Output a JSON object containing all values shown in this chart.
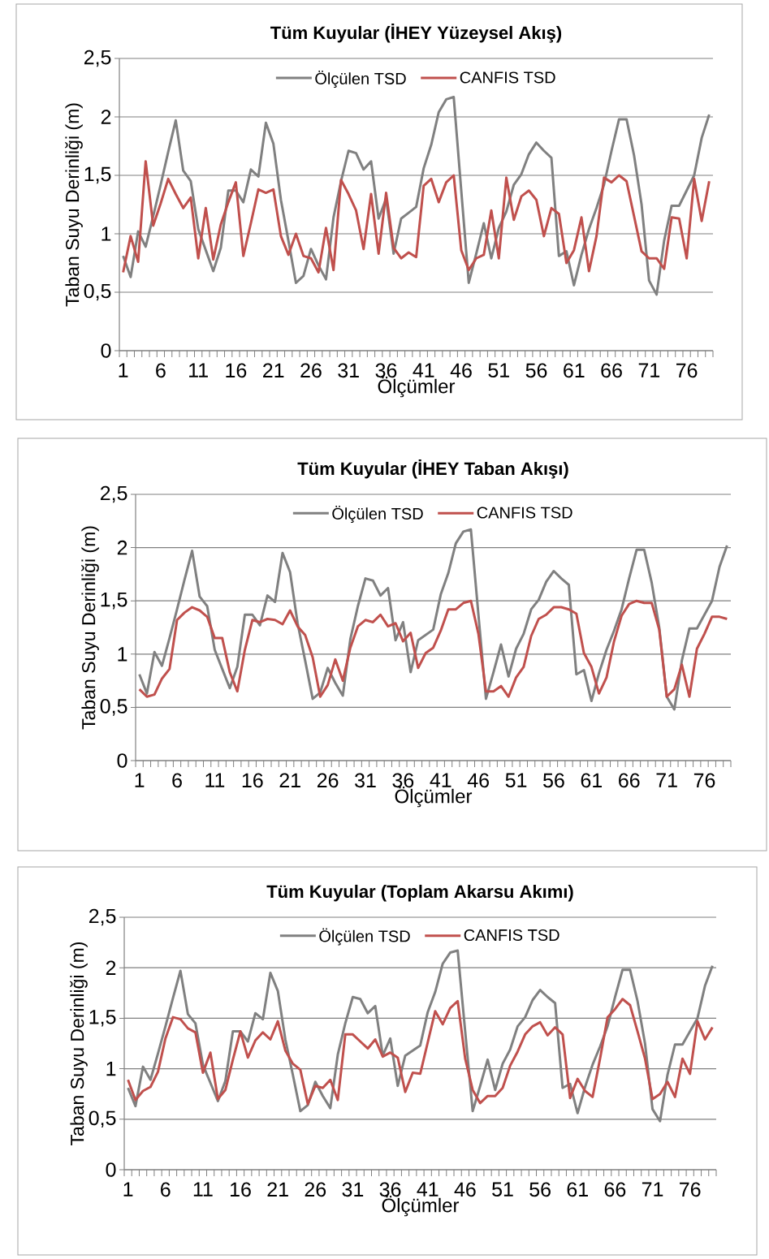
{
  "chart_data": [
    {
      "type": "line",
      "title": "Tüm Kuyular (İHEY Yüzeysel Akış)",
      "xlabel": "Ölçümler",
      "ylabel": "Taban Suyu Derinliği (m)",
      "categories": [
        "1",
        null,
        null,
        null,
        null,
        "6",
        null,
        null,
        null,
        null,
        "11",
        null,
        null,
        null,
        null,
        "16",
        null,
        null,
        null,
        null,
        "21",
        null,
        null,
        null,
        null,
        "26",
        null,
        null,
        null,
        null,
        "31",
        null,
        null,
        null,
        null,
        "36",
        null,
        null,
        null,
        null,
        "41",
        null,
        null,
        null,
        null,
        "46",
        null,
        null,
        null,
        null,
        "51",
        null,
        null,
        null,
        null,
        "56",
        null,
        null,
        null,
        null,
        "61",
        null,
        null,
        null,
        null,
        "66",
        null,
        null,
        null,
        null,
        "71",
        null,
        null,
        null,
        null,
        "76",
        null,
        null,
        null
      ],
      "series": [
        {
          "name": "Ölçülen TSD",
          "color": "#808080",
          "values": [
            0.81,
            0.63,
            1.02,
            0.89,
            1.15,
            1.42,
            1.7,
            1.97,
            1.54,
            1.45,
            1.04,
            0.86,
            0.68,
            0.88,
            1.37,
            1.37,
            1.27,
            1.55,
            1.49,
            1.95,
            1.77,
            1.29,
            0.94,
            0.58,
            0.64,
            0.87,
            0.73,
            0.61,
            1.14,
            1.45,
            1.71,
            1.69,
            1.55,
            1.62,
            1.13,
            1.3,
            0.83,
            1.13,
            1.18,
            1.23,
            1.56,
            1.76,
            2.04,
            2.15,
            2.17,
            1.37,
            0.58,
            0.83,
            1.09,
            0.79,
            1.05,
            1.19,
            1.42,
            1.51,
            1.68,
            1.78,
            1.71,
            1.65,
            0.81,
            0.85,
            0.56,
            0.82,
            1.04,
            1.22,
            1.42,
            1.71,
            1.98,
            1.98,
            1.67,
            1.25,
            0.6,
            0.48,
            0.94,
            1.24,
            1.24,
            1.37,
            1.5,
            1.82,
            2.02
          ]
        },
        {
          "name": "CANFIS TSD",
          "color": "#c0504d",
          "values": [
            0.67,
            0.98,
            0.76,
            1.62,
            1.07,
            1.26,
            1.47,
            1.34,
            1.22,
            1.31,
            0.79,
            1.22,
            0.78,
            1.08,
            1.27,
            1.44,
            0.81,
            1.09,
            1.38,
            1.35,
            1.38,
            0.98,
            0.82,
            1.0,
            0.81,
            0.79,
            0.67,
            1.05,
            0.69,
            1.46,
            1.34,
            1.2,
            0.87,
            1.34,
            0.83,
            1.35,
            0.88,
            0.79,
            0.84,
            0.8,
            1.41,
            1.47,
            1.27,
            1.44,
            1.5,
            0.86,
            0.69,
            0.79,
            0.82,
            1.2,
            0.79,
            1.48,
            1.12,
            1.32,
            1.37,
            1.29,
            0.98,
            1.22,
            1.17,
            0.75,
            0.86,
            1.14,
            0.68,
            0.98,
            1.48,
            1.44,
            1.5,
            1.45,
            1.15,
            0.85,
            0.79,
            0.79,
            0.7,
            1.14,
            1.13,
            0.79,
            1.47,
            1.11,
            1.45
          ]
        }
      ],
      "ylim": [
        0,
        2.5
      ],
      "yticks": [
        0,
        {
          "value": 0.5,
          "label": "0,5"
        },
        1,
        {
          "value": 1.5,
          "label": "1,5"
        },
        2,
        {
          "value": 2.5,
          "label": "2,5"
        }
      ],
      "grid": "y",
      "legend": "top",
      "marker": "none"
    },
    {
      "type": "line",
      "title": "Tüm Kuyular (İHEY Taban Akışı)",
      "xlabel": "Ölçümler",
      "ylabel": "Taban Suyu Derinliği (m)",
      "categories": [
        "1",
        null,
        null,
        null,
        null,
        "6",
        null,
        null,
        null,
        null,
        "11",
        null,
        null,
        null,
        null,
        "16",
        null,
        null,
        null,
        null,
        "21",
        null,
        null,
        null,
        null,
        "26",
        null,
        null,
        null,
        null,
        "31",
        null,
        null,
        null,
        null,
        "36",
        null,
        null,
        null,
        null,
        "41",
        null,
        null,
        null,
        null,
        "46",
        null,
        null,
        null,
        null,
        "51",
        null,
        null,
        null,
        null,
        "56",
        null,
        null,
        null,
        null,
        "61",
        null,
        null,
        null,
        null,
        "66",
        null,
        null,
        null,
        null,
        "71",
        null,
        null,
        null,
        null,
        "76",
        null,
        null,
        null
      ],
      "series": [
        {
          "name": "Ölçülen TSD",
          "color": "#808080",
          "values": [
            0.81,
            0.63,
            1.02,
            0.89,
            1.15,
            1.42,
            1.7,
            1.97,
            1.54,
            1.45,
            1.04,
            0.86,
            0.68,
            0.88,
            1.37,
            1.37,
            1.27,
            1.55,
            1.49,
            1.95,
            1.77,
            1.29,
            0.94,
            0.58,
            0.64,
            0.87,
            0.73,
            0.61,
            1.14,
            1.45,
            1.71,
            1.69,
            1.55,
            1.62,
            1.13,
            1.3,
            0.83,
            1.13,
            1.18,
            1.23,
            1.56,
            1.76,
            2.04,
            2.15,
            2.17,
            1.37,
            0.58,
            0.83,
            1.09,
            0.79,
            1.05,
            1.19,
            1.42,
            1.51,
            1.68,
            1.78,
            1.71,
            1.65,
            0.81,
            0.85,
            0.56,
            0.82,
            1.04,
            1.22,
            1.42,
            1.71,
            1.98,
            1.98,
            1.67,
            1.25,
            0.6,
            0.48,
            0.94,
            1.24,
            1.24,
            1.37,
            1.5,
            1.82,
            2.02
          ]
        },
        {
          "name": "CANFIS TSD",
          "color": "#c0504d",
          "values": [
            0.67,
            0.6,
            0.62,
            0.77,
            0.86,
            1.32,
            1.39,
            1.44,
            1.41,
            1.35,
            1.15,
            1.15,
            0.83,
            0.65,
            1.04,
            1.32,
            1.3,
            1.33,
            1.32,
            1.28,
            1.41,
            1.26,
            1.18,
            0.97,
            0.6,
            0.71,
            0.95,
            0.75,
            1.06,
            1.26,
            1.32,
            1.3,
            1.37,
            1.26,
            1.29,
            1.12,
            1.2,
            0.87,
            1.01,
            1.06,
            1.22,
            1.42,
            1.42,
            1.48,
            1.5,
            1.19,
            0.65,
            0.65,
            0.7,
            0.6,
            0.78,
            0.88,
            1.17,
            1.33,
            1.37,
            1.44,
            1.44,
            1.42,
            1.38,
            1.01,
            0.88,
            0.63,
            0.78,
            1.12,
            1.36,
            1.47,
            1.5,
            1.48,
            1.48,
            1.23,
            0.6,
            0.67,
            0.9,
            0.6,
            1.05,
            1.19,
            1.35,
            1.35,
            1.33
          ]
        }
      ],
      "ylim": [
        0,
        2.5
      ],
      "yticks": [
        0,
        {
          "value": 0.5,
          "label": "0,5"
        },
        1,
        {
          "value": 1.5,
          "label": "1,5"
        },
        2,
        {
          "value": 2.5,
          "label": "2,5"
        }
      ],
      "grid": "y",
      "legend": "top",
      "marker": "none"
    },
    {
      "type": "line",
      "title": "Tüm Kuyular (Toplam Akarsu Akımı)",
      "xlabel": "Ölçümler",
      "ylabel": "Taban Suyu Derinliği (m)",
      "categories": [
        "1",
        null,
        null,
        null,
        null,
        "6",
        null,
        null,
        null,
        null,
        "11",
        null,
        null,
        null,
        null,
        "16",
        null,
        null,
        null,
        null,
        "21",
        null,
        null,
        null,
        null,
        "26",
        null,
        null,
        null,
        null,
        "31",
        null,
        null,
        null,
        null,
        "36",
        null,
        null,
        null,
        null,
        "41",
        null,
        null,
        null,
        null,
        "46",
        null,
        null,
        null,
        null,
        "51",
        null,
        null,
        null,
        null,
        "56",
        null,
        null,
        null,
        null,
        "61",
        null,
        null,
        null,
        null,
        "66",
        null,
        null,
        null,
        null,
        "71",
        null,
        null,
        null,
        null,
        "76",
        null,
        null,
        null
      ],
      "series": [
        {
          "name": "Ölçülen TSD",
          "color": "#808080",
          "values": [
            0.81,
            0.63,
            1.02,
            0.89,
            1.15,
            1.42,
            1.7,
            1.97,
            1.54,
            1.45,
            1.04,
            0.86,
            0.68,
            0.88,
            1.37,
            1.37,
            1.27,
            1.55,
            1.49,
            1.95,
            1.77,
            1.29,
            0.94,
            0.58,
            0.64,
            0.87,
            0.73,
            0.61,
            1.14,
            1.45,
            1.71,
            1.69,
            1.55,
            1.62,
            1.13,
            1.3,
            0.83,
            1.13,
            1.18,
            1.23,
            1.56,
            1.76,
            2.04,
            2.15,
            2.17,
            1.37,
            0.58,
            0.83,
            1.09,
            0.79,
            1.05,
            1.19,
            1.42,
            1.51,
            1.68,
            1.78,
            1.71,
            1.65,
            0.81,
            0.85,
            0.56,
            0.82,
            1.04,
            1.22,
            1.42,
            1.71,
            1.98,
            1.98,
            1.67,
            1.25,
            0.6,
            0.48,
            0.94,
            1.24,
            1.24,
            1.37,
            1.5,
            1.82,
            2.02
          ]
        },
        {
          "name": "CANFIS TSD",
          "color": "#c0504d",
          "values": [
            0.89,
            0.69,
            0.78,
            0.82,
            0.97,
            1.3,
            1.51,
            1.49,
            1.4,
            1.36,
            0.96,
            1.16,
            0.7,
            0.79,
            1.09,
            1.37,
            1.11,
            1.28,
            1.36,
            1.29,
            1.47,
            1.18,
            1.05,
            0.99,
            0.65,
            0.83,
            0.81,
            0.89,
            0.69,
            1.34,
            1.34,
            1.27,
            1.2,
            1.29,
            1.12,
            1.16,
            1.11,
            0.77,
            0.96,
            0.95,
            1.26,
            1.57,
            1.44,
            1.6,
            1.67,
            1.1,
            0.79,
            0.66,
            0.73,
            0.73,
            0.81,
            1.03,
            1.17,
            1.34,
            1.42,
            1.46,
            1.33,
            1.41,
            1.34,
            0.71,
            0.9,
            0.78,
            0.72,
            1.1,
            1.51,
            1.59,
            1.69,
            1.63,
            1.37,
            1.1,
            0.7,
            0.75,
            0.87,
            0.72,
            1.1,
            0.95,
            1.47,
            1.29,
            1.41
          ]
        }
      ],
      "ylim": [
        0,
        2.5
      ],
      "yticks": [
        0,
        {
          "value": 0.5,
          "label": "0,5"
        },
        1,
        {
          "value": 1.5,
          "label": "1,5"
        },
        2,
        {
          "value": 2.5,
          "label": "2,5"
        }
      ],
      "grid": "y",
      "legend": "top",
      "marker": "none"
    }
  ]
}
